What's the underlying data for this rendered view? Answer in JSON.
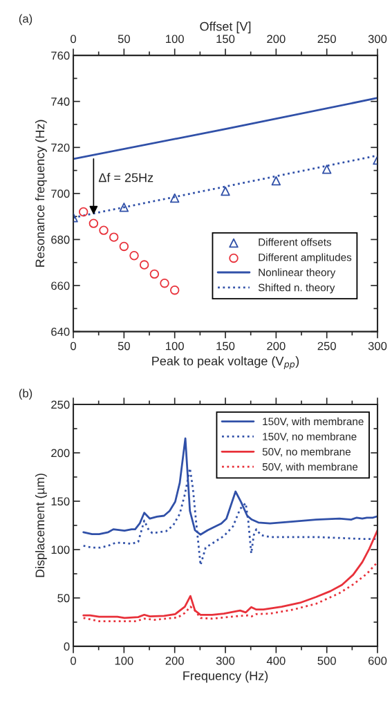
{
  "chart_data": [
    {
      "type": "scatter",
      "xlabel": "Peak to peak voltage (V$_{pp}$)",
      "ylabel": "Resonance frequency (Hz)",
      "x2label": "Offset [V]",
      "xlim": [
        0,
        300
      ],
      "xticks": [
        0,
        50,
        100,
        150,
        200,
        250,
        300
      ],
      "x2lim": [
        0,
        300
      ],
      "x2ticks": [
        0,
        50,
        100,
        150,
        200,
        250,
        300
      ],
      "ylim": [
        640,
        760
      ],
      "yticks": [
        640,
        660,
        680,
        700,
        720,
        740,
        760
      ],
      "grid": false,
      "legend": "lower right",
      "annotations": [
        "(a)",
        {
          "text": "Δf = 25Hz",
          "x": 20,
          "y": 690
        }
      ],
      "series": [
        {
          "name": "Different offsets",
          "type": "scatter",
          "marker": "triangle",
          "color": "#3050a8",
          "x": [
            0,
            50,
            100,
            150,
            200,
            250,
            300
          ],
          "values": [
            689.5,
            694,
            698,
            701,
            705.5,
            710.5,
            714.5
          ]
        },
        {
          "name": "Different amplitudes",
          "type": "scatter",
          "marker": "circle",
          "color": "#e8313a",
          "x": [
            10,
            20,
            30,
            40,
            50,
            60,
            70,
            80,
            90,
            100
          ],
          "values": [
            692,
            687,
            684,
            681,
            677,
            673,
            669,
            665,
            661,
            658
          ]
        },
        {
          "name": "Nonlinear theory",
          "type": "line",
          "line_style": "solid",
          "color": "#3050a8",
          "x": [
            0,
            150,
            300
          ],
          "values": [
            715,
            728,
            741.5
          ]
        },
        {
          "name": "Shifted n. theory",
          "type": "line",
          "line_style": "dotted",
          "color": "#3050a8",
          "x": [
            0,
            150,
            300
          ],
          "values": [
            689.5,
            703,
            716.5
          ]
        }
      ]
    },
    {
      "type": "line",
      "xlabel": "Frequency (Hz)",
      "ylabel": "Displacement (µm)",
      "xlim": [
        0,
        600
      ],
      "xticks": [
        0,
        100,
        200,
        300,
        400,
        500,
        600
      ],
      "ylim": [
        0,
        250
      ],
      "yticks": [
        0,
        50,
        100,
        150,
        200,
        250
      ],
      "grid": false,
      "legend": "top right",
      "annotations": [
        "(b)"
      ],
      "series": [
        {
          "name": "150V, with membrane",
          "line_style": "solid",
          "color": "#3050a8",
          "x": [
            20,
            37,
            51,
            69,
            79,
            101,
            115,
            122,
            131,
            140,
            151,
            165,
            179,
            190,
            201,
            210,
            221,
            230,
            240,
            251,
            265,
            292,
            302,
            320,
            331,
            343,
            352,
            365,
            388,
            434,
            479,
            525,
            548,
            559,
            570,
            579,
            591,
            600
          ],
          "values": [
            118,
            116,
            116,
            118,
            121,
            119.5,
            121,
            121,
            127,
            138,
            132,
            134,
            135,
            140,
            149.5,
            169,
            215,
            140,
            120,
            115.5,
            120,
            127,
            132,
            160,
            149,
            135,
            131,
            128,
            127,
            129,
            131,
            132,
            131,
            133,
            132,
            133,
            133,
            134.5
          ]
        },
        {
          "name": "150V, no membrane",
          "line_style": "dotted",
          "color": "#3050a8",
          "x": [
            20,
            37,
            53,
            69,
            83,
            97,
            115,
            128,
            140,
            149,
            156,
            169,
            183,
            197,
            210,
            220,
            225,
            230,
            236,
            242,
            251,
            261,
            279,
            297,
            315,
            329,
            340,
            345,
            351,
            356,
            361,
            370,
            388,
            434,
            479,
            525,
            570,
            598
          ],
          "values": [
            104,
            102,
            102,
            104,
            107,
            107,
            106,
            108,
            130,
            120,
            117,
            118,
            119,
            125,
            137,
            157,
            170,
            184,
            163,
            130,
            84,
            102,
            108,
            114,
            124,
            142,
            148,
            130,
            96,
            115,
            121,
            115,
            113,
            113,
            113,
            112,
            111,
            111
          ]
        },
        {
          "name": "50V, no membrane",
          "line_style": "solid",
          "color": "#e8313a",
          "x": [
            20,
            33,
            51,
            87,
            101,
            128,
            140,
            151,
            179,
            201,
            220,
            231,
            240,
            251,
            274,
            297,
            329,
            340,
            351,
            361,
            375,
            411,
            447,
            479,
            507,
            530,
            552,
            570,
            584,
            600
          ],
          "values": [
            32,
            32,
            30.5,
            30.5,
            29.3,
            30.2,
            32.6,
            30.9,
            31.4,
            33.3,
            41,
            52,
            37,
            32.6,
            32.6,
            33.8,
            37,
            35,
            40.5,
            38,
            38,
            41,
            45,
            51,
            57,
            63.6,
            74,
            87,
            101,
            120
          ]
        },
        {
          "name": "50V, with membrane",
          "line_style": "dotted",
          "color": "#e8313a",
          "x": [
            20,
            51,
            92,
            124,
            140,
            160,
            206,
            220,
            231,
            240,
            251,
            274,
            320,
            343,
            352,
            361,
            388,
            434,
            479,
            525,
            552,
            579,
            600
          ],
          "values": [
            29.3,
            26,
            26,
            26,
            28.6,
            27.4,
            29.8,
            34.5,
            41,
            37,
            29.3,
            28.6,
            31,
            32,
            31,
            33.3,
            33.8,
            38,
            44,
            55,
            64,
            75,
            87
          ]
        }
      ]
    }
  ]
}
